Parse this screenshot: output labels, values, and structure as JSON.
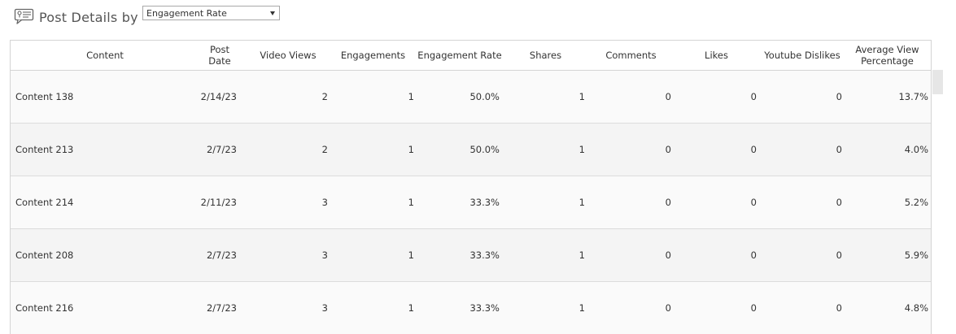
{
  "header": {
    "title": "Post Details by",
    "icon": "speech-bubble-icon",
    "dropdown": {
      "selected": "Engagement Rate"
    }
  },
  "table": {
    "columns": [
      "Content",
      "Post Date",
      "Video Views",
      "Engagements",
      "Engagement Rate",
      "Shares",
      "Comments",
      "Likes",
      "Youtube Dislikes",
      "Average View Percentage"
    ],
    "column_header_lines": {
      "post_date": [
        "Post",
        "Date"
      ],
      "average_view_percentage": [
        "Average View",
        "Percentage"
      ]
    },
    "rows": [
      {
        "content": "Content 138",
        "post_date": "2/14/23",
        "video_views": "2",
        "engagements": "1",
        "engagement_rate": "50.0%",
        "shares": "1",
        "comments": "0",
        "likes": "0",
        "youtube_dislikes": "0",
        "average_view_percentage": "13.7%"
      },
      {
        "content": "Content 213",
        "post_date": "2/7/23",
        "video_views": "2",
        "engagements": "1",
        "engagement_rate": "50.0%",
        "shares": "1",
        "comments": "0",
        "likes": "0",
        "youtube_dislikes": "0",
        "average_view_percentage": "4.0%"
      },
      {
        "content": "Content 214",
        "post_date": "2/11/23",
        "video_views": "3",
        "engagements": "1",
        "engagement_rate": "33.3%",
        "shares": "1",
        "comments": "0",
        "likes": "0",
        "youtube_dislikes": "0",
        "average_view_percentage": "5.2%"
      },
      {
        "content": "Content 208",
        "post_date": "2/7/23",
        "video_views": "3",
        "engagements": "1",
        "engagement_rate": "33.3%",
        "shares": "1",
        "comments": "0",
        "likes": "0",
        "youtube_dislikes": "0",
        "average_view_percentage": "5.9%"
      },
      {
        "content": "Content 216",
        "post_date": "2/7/23",
        "video_views": "3",
        "engagements": "1",
        "engagement_rate": "33.3%",
        "shares": "1",
        "comments": "0",
        "likes": "0",
        "youtube_dislikes": "0",
        "average_view_percentage": "4.8%"
      }
    ]
  },
  "colors": {
    "border": "#d4d4d4",
    "row_odd": "#fafafa",
    "row_even": "#f4f4f4",
    "text": "#333333"
  }
}
